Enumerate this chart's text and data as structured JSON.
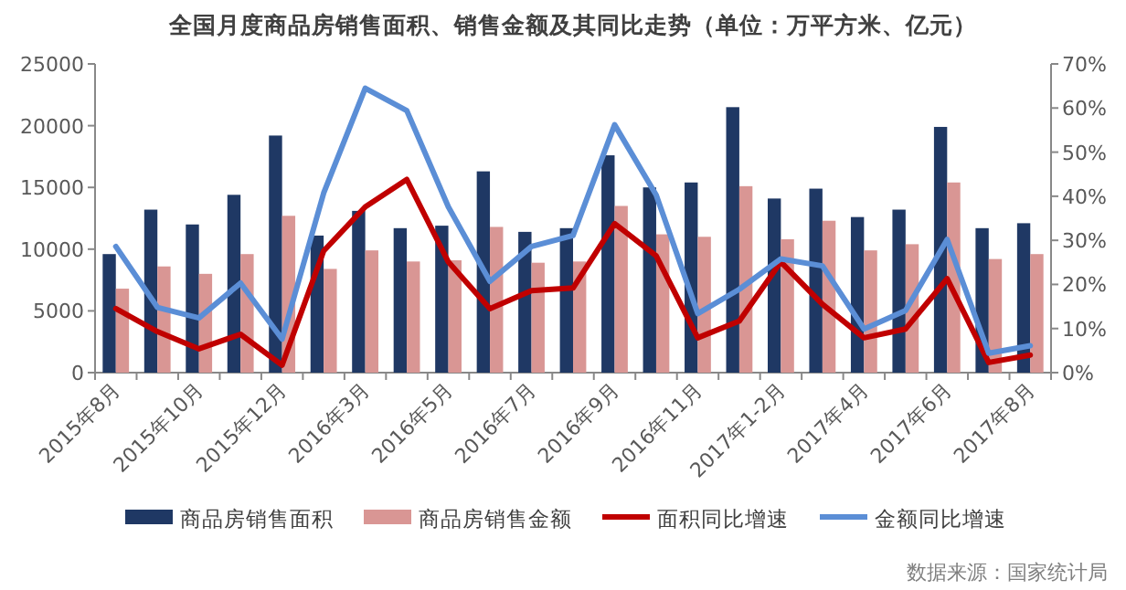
{
  "chart_data": {
    "type": "bar",
    "title": "全国月度商品房销售面积、销售金额及其同比走势（单位：万平方米、亿元）",
    "categories": [
      "2015年8月",
      null,
      "2015年10月",
      null,
      "2015年12月",
      null,
      "2016年3月",
      null,
      "2016年5月",
      null,
      "2016年7月",
      null,
      "2016年9月",
      null,
      "2016年11月",
      null,
      "2017年1-2月",
      null,
      "2017年4月",
      null,
      "2017年6月",
      null,
      "2017年8月"
    ],
    "series": [
      {
        "name": "商品房销售面积",
        "color": "#1f3864",
        "values": [
          9600,
          13200,
          12000,
          14400,
          19200,
          11100,
          13100,
          11700,
          11900,
          16300,
          11400,
          11700,
          17600,
          15000,
          15400,
          21500,
          14100,
          14900,
          12600,
          13200,
          19900,
          11700,
          12100
        ]
      },
      {
        "name": "商品房销售金额",
        "color": "#d99694",
        "values": [
          6800,
          8600,
          8000,
          9600,
          12700,
          8400,
          9900,
          9000,
          9100,
          11800,
          8900,
          9000,
          13500,
          11200,
          11000,
          15100,
          10800,
          12300,
          9900,
          10400,
          15400,
          9200,
          9600
        ]
      },
      {
        "name": "面积同比增速",
        "type": "line",
        "axis": "y2",
        "color": "#c00000",
        "values": [
          14.5,
          9.3,
          5.4,
          8.7,
          1.7,
          27.6,
          37.6,
          43.8,
          25.1,
          14.5,
          18.6,
          19.2,
          33.8,
          26.5,
          7.9,
          11.7,
          25.1,
          15.5,
          7.9,
          9.9,
          21.3,
          2.3,
          4.0
        ]
      },
      {
        "name": "金额同比增速",
        "type": "line",
        "axis": "y2",
        "color": "#5b8ed6",
        "values": [
          28.6,
          14.8,
          12.4,
          20.3,
          7.6,
          40.7,
          64.5,
          59.4,
          37.6,
          20.7,
          28.6,
          31.1,
          56.2,
          40.3,
          13.4,
          18.9,
          25.8,
          24.2,
          9.9,
          14.1,
          30.2,
          4.4,
          6.1
        ]
      }
    ],
    "ylim": [
      0,
      25000
    ],
    "yticks": [
      0,
      5000,
      10000,
      15000,
      20000,
      25000
    ],
    "y2lim": [
      0,
      70
    ],
    "y2ticks": [
      {
        "value": 0,
        "label": "0%"
      },
      {
        "value": 10,
        "label": "10%"
      },
      {
        "value": 20,
        "label": "20%"
      },
      {
        "value": 30,
        "label": "30%"
      },
      {
        "value": 40,
        "label": "40%"
      },
      {
        "value": 50,
        "label": "50%"
      },
      {
        "value": 60,
        "label": "60%"
      },
      {
        "value": 70,
        "label": "70%"
      }
    ],
    "legend": "bottom",
    "grid": false,
    "annotations": [
      "数据来源：国家统计局"
    ]
  }
}
